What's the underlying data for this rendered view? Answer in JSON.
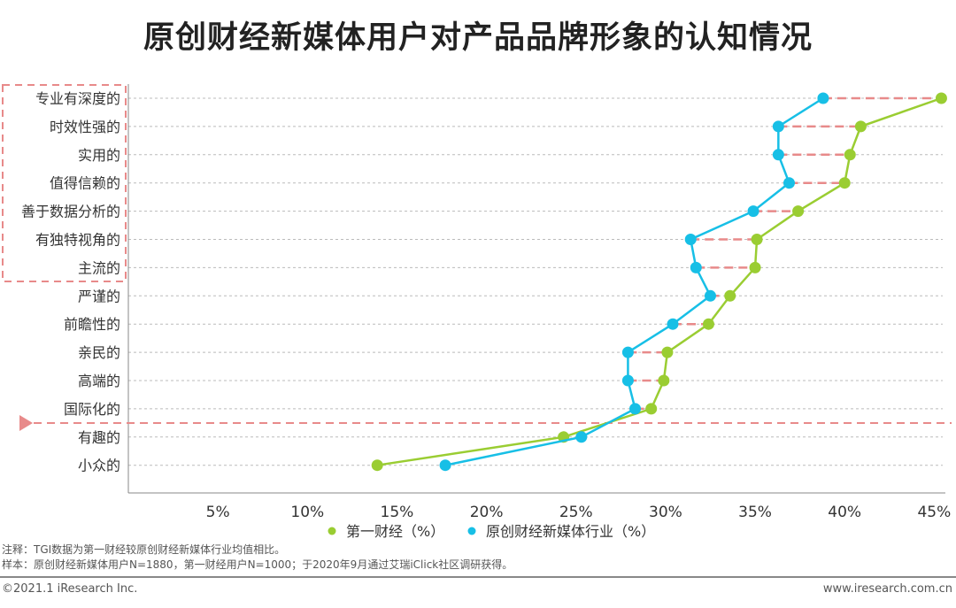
{
  "title": "原创财经新媒体用户对产品品牌形象的认知情况",
  "chart_data": {
    "type": "line",
    "title": "原创财经新媒体用户对产品品牌形象的认知情况",
    "orientation": "horizontal",
    "categories": [
      "专业有深度的",
      "时效性强的",
      "实用的",
      "值得信赖的",
      "善于数据分析的",
      "有独特视角的",
      "主流的",
      "严谨的",
      "前瞻性的",
      "亲民的",
      "高端的",
      "国际化的",
      "有趣的",
      "小众的"
    ],
    "series": [
      {
        "name": "第一财经（%）",
        "color": "#9acd32",
        "values": [
          45.4,
          40.9,
          40.3,
          40.0,
          37.4,
          35.1,
          35.0,
          33.6,
          32.4,
          30.1,
          29.9,
          29.2,
          24.3,
          13.9
        ]
      },
      {
        "name": "原创财经新媒体行业（%）",
        "color": "#17bfe6",
        "values": [
          38.8,
          36.3,
          36.3,
          36.9,
          34.9,
          31.4,
          31.7,
          32.5,
          30.4,
          27.9,
          27.9,
          28.3,
          25.3,
          17.7
        ]
      }
    ],
    "xticks": [
      "5%",
      "10%",
      "15%",
      "20%",
      "25%",
      "30%",
      "35%",
      "40%",
      "45%"
    ],
    "xtick_values": [
      5,
      10,
      15,
      20,
      25,
      30,
      35,
      40,
      45
    ],
    "xlim": [
      0,
      45.5
    ],
    "legend": "bottom",
    "highlight_color": "#e88a8a"
  },
  "notes": {
    "note": "注释：TGI数据为第一财经较原创财经新媒体行业均值相比。",
    "sample": "样本：原创财经新媒体用户N=1880，第一财经用户N=1000；于2020年9月通过艾瑞iClick社区调研获得。"
  },
  "footer": {
    "copyright": "©2021.1 iResearch Inc.",
    "site": "www.iresearch.com.cn"
  }
}
